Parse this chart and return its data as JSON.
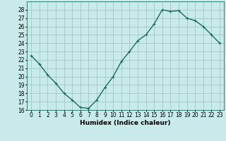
{
  "x": [
    0,
    1,
    2,
    3,
    4,
    5,
    6,
    7,
    8,
    9,
    10,
    11,
    12,
    13,
    14,
    15,
    16,
    17,
    18,
    19,
    20,
    21,
    22,
    23
  ],
  "y": [
    22.5,
    21.5,
    20.2,
    19.2,
    18.0,
    17.2,
    16.3,
    16.2,
    17.2,
    18.7,
    20.0,
    21.8,
    23.0,
    24.3,
    25.0,
    26.3,
    28.0,
    27.8,
    27.9,
    27.0,
    26.7,
    26.0,
    25.0,
    24.0
  ],
  "line_color": "#1a6b5a",
  "marker": "+",
  "marker_size": 3,
  "bg_color": "#c8eaea",
  "grid_color": "#9bbfbf",
  "xlabel": "Humidex (Indice chaleur)",
  "ylim": [
    16,
    29
  ],
  "xlim": [
    -0.5,
    23.5
  ],
  "yticks": [
    16,
    17,
    18,
    19,
    20,
    21,
    22,
    23,
    24,
    25,
    26,
    27,
    28
  ],
  "xticks": [
    0,
    1,
    2,
    3,
    4,
    5,
    6,
    7,
    8,
    9,
    10,
    11,
    12,
    13,
    14,
    15,
    16,
    17,
    18,
    19,
    20,
    21,
    22,
    23
  ],
  "xlabel_fontsize": 6.5,
  "tick_fontsize": 5.5,
  "linewidth": 1.0
}
